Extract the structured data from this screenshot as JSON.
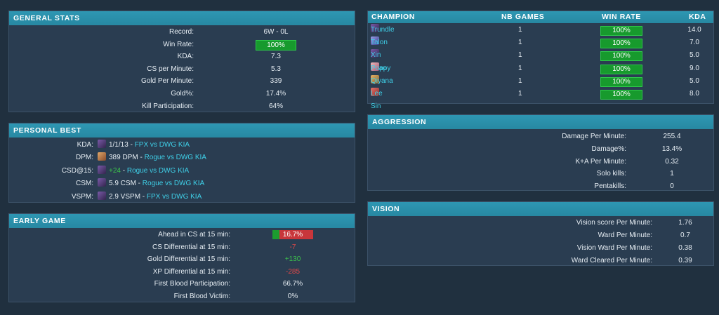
{
  "general": {
    "title": "GENERAL STATS",
    "rows": [
      {
        "label": "Record:",
        "value": "6W - 0L"
      },
      {
        "label": "Win Rate:",
        "value": "100%"
      },
      {
        "label": "KDA:",
        "value": "7.3"
      },
      {
        "label": "CS per Minute:",
        "value": "5.3"
      },
      {
        "label": "Gold Per Minute:",
        "value": "339"
      },
      {
        "label": "Gold%:",
        "value": "17.4%"
      },
      {
        "label": "Kill Participation:",
        "value": "64%"
      }
    ]
  },
  "personal_best": {
    "title": "PERSONAL BEST",
    "rows": [
      {
        "label": "KDA:",
        "icon": "trundle-avatar-icon",
        "stat": "1/1/13 - ",
        "match": "FPX vs DWG KIA"
      },
      {
        "label": "DPM:",
        "icon": "champion-avatar-icon",
        "stat": "389 DPM - ",
        "match": "Rogue vs DWG KIA"
      },
      {
        "label": "CSD@15:",
        "icon": "champion-avatar-icon",
        "stat": "+24",
        "sep": " - ",
        "match": "Rogue vs DWG KIA"
      },
      {
        "label": "CSM:",
        "icon": "champion-avatar-icon",
        "stat": "5.9 CSM - ",
        "match": "Rogue vs DWG KIA"
      },
      {
        "label": "VSPM:",
        "icon": "champion-avatar-icon",
        "stat": "2.9 VSPM - ",
        "match": "FPX vs DWG KIA"
      }
    ]
  },
  "early_game": {
    "title": "EARLY GAME",
    "rows": [
      {
        "label": "Ahead in CS at 15 min:",
        "value": "16.7%",
        "fraction": 0.167
      },
      {
        "label": "CS Differential at 15 min:",
        "value": "-7"
      },
      {
        "label": "Gold Differential at 15 min:",
        "value": "+130"
      },
      {
        "label": "XP Differential at 15 min:",
        "value": "-285"
      },
      {
        "label": "First Blood Participation:",
        "value": "66.7%"
      },
      {
        "label": "First Blood Victim:",
        "value": "0%"
      }
    ]
  },
  "champions": {
    "headers": {
      "champion": "CHAMPION",
      "games": "NB GAMES",
      "winrate": "WIN RATE",
      "kda": "KDA"
    },
    "rows": [
      {
        "name": "Trundle",
        "icon": "trundle-icon",
        "games": "1",
        "winrate": "100%",
        "kda": "14.0"
      },
      {
        "name": "Talon",
        "icon": "talon-icon",
        "games": "1",
        "winrate": "100%",
        "kda": "7.0"
      },
      {
        "name": "Xin Zhao",
        "icon": "xin-zhao-icon",
        "games": "1",
        "winrate": "100%",
        "kda": "5.0"
      },
      {
        "name": "Poppy",
        "icon": "poppy-icon",
        "games": "1",
        "winrate": "100%",
        "kda": "9.0"
      },
      {
        "name": "Qiyana",
        "icon": "qiyana-icon",
        "games": "1",
        "winrate": "100%",
        "kda": "5.0"
      },
      {
        "name": "Lee Sin",
        "icon": "lee-sin-icon",
        "games": "1",
        "winrate": "100%",
        "kda": "8.0"
      }
    ]
  },
  "aggression": {
    "title": "AGGRESSION",
    "rows": [
      {
        "label": "Damage Per Minute:",
        "value": "255.4"
      },
      {
        "label": "Damage%:",
        "value": "13.4%"
      },
      {
        "label": "K+A Per Minute:",
        "value": "0.32"
      },
      {
        "label": "Solo kills:",
        "value": "1"
      },
      {
        "label": "Pentakills:",
        "value": "0"
      }
    ]
  },
  "vision": {
    "title": "VISION",
    "rows": [
      {
        "label": "Vision score Per Minute:",
        "value": "1.76"
      },
      {
        "label": "Ward Per Minute:",
        "value": "0.7"
      },
      {
        "label": "Vision Ward Per Minute:",
        "value": "0.38"
      },
      {
        "label": "Ward Cleared Per Minute:",
        "value": "0.39"
      }
    ]
  },
  "colors": {
    "header": "#2a8fab",
    "panel": "#2a3d51",
    "background": "#20303f",
    "link": "#3fd0e8",
    "positive": "#3cc44c",
    "negative": "#e04848",
    "bar_green": "#179a2d",
    "bar_red": "#c8363b"
  }
}
